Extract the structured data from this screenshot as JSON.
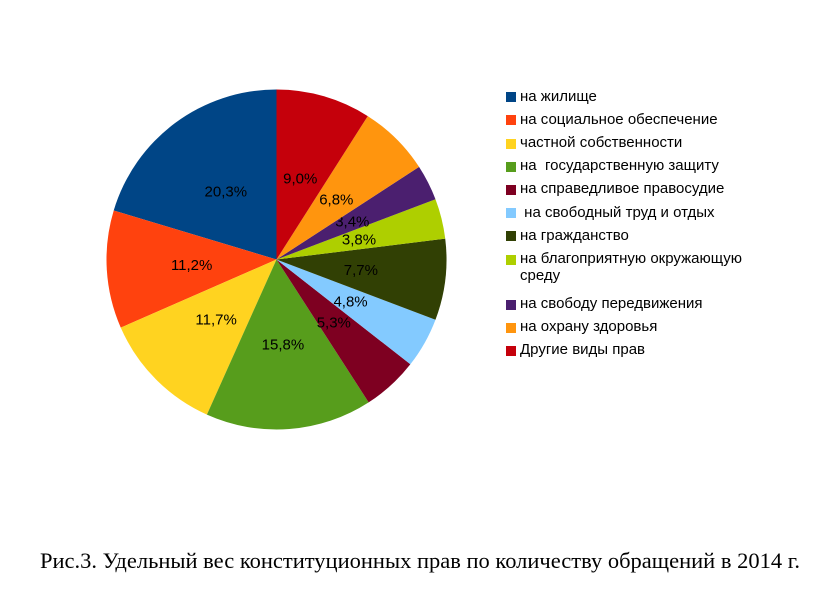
{
  "chart_data": {
    "type": "pie",
    "title": "",
    "start_angle_deg": 90,
    "direction": "counterclockwise",
    "legend_position": "right",
    "label_format": "percent-comma-decimal",
    "label_color": "#000000",
    "background_color": "#ffffff",
    "slices": [
      {
        "label": "на жилище",
        "value": 20.3,
        "display": "20,3%",
        "color": "#004586"
      },
      {
        "label": "на социальное обеспечение",
        "value": 11.2,
        "display": "11,2%",
        "color": "#ff420e"
      },
      {
        "label": "частной собственности",
        "value": 11.7,
        "display": "11,7%",
        "color": "#ffd320"
      },
      {
        "label": "на  государственную защиту",
        "value": 15.8,
        "display": "15,8%",
        "color": "#579d1c"
      },
      {
        "label": "на справедливое правосудие",
        "value": 5.3,
        "display": "5,3%",
        "color": "#7e0021"
      },
      {
        "label": " на свободный труд и отдых",
        "value": 4.8,
        "display": "4,8%",
        "color": "#83caff"
      },
      {
        "label": "на гражданство",
        "value": 7.7,
        "display": "7,7%",
        "color": "#314004"
      },
      {
        "label": "на благоприятную окружающую среду",
        "value": 3.8,
        "display": "3,8%",
        "color": "#aecf00"
      },
      {
        "label": "на свободу передвижения",
        "value": 3.4,
        "display": "3,4%",
        "color": "#4b1f6f"
      },
      {
        "label": "на охрану здоровья",
        "value": 6.8,
        "display": "6,8%",
        "color": "#ff950e"
      },
      {
        "label": "Другие виды прав",
        "value": 9.0,
        "display": "9,0%",
        "color": "#c5000b"
      }
    ]
  },
  "caption": {
    "text": "Рис.3. Удельный вес конституционных прав по количеству обращений в 2014 г."
  }
}
